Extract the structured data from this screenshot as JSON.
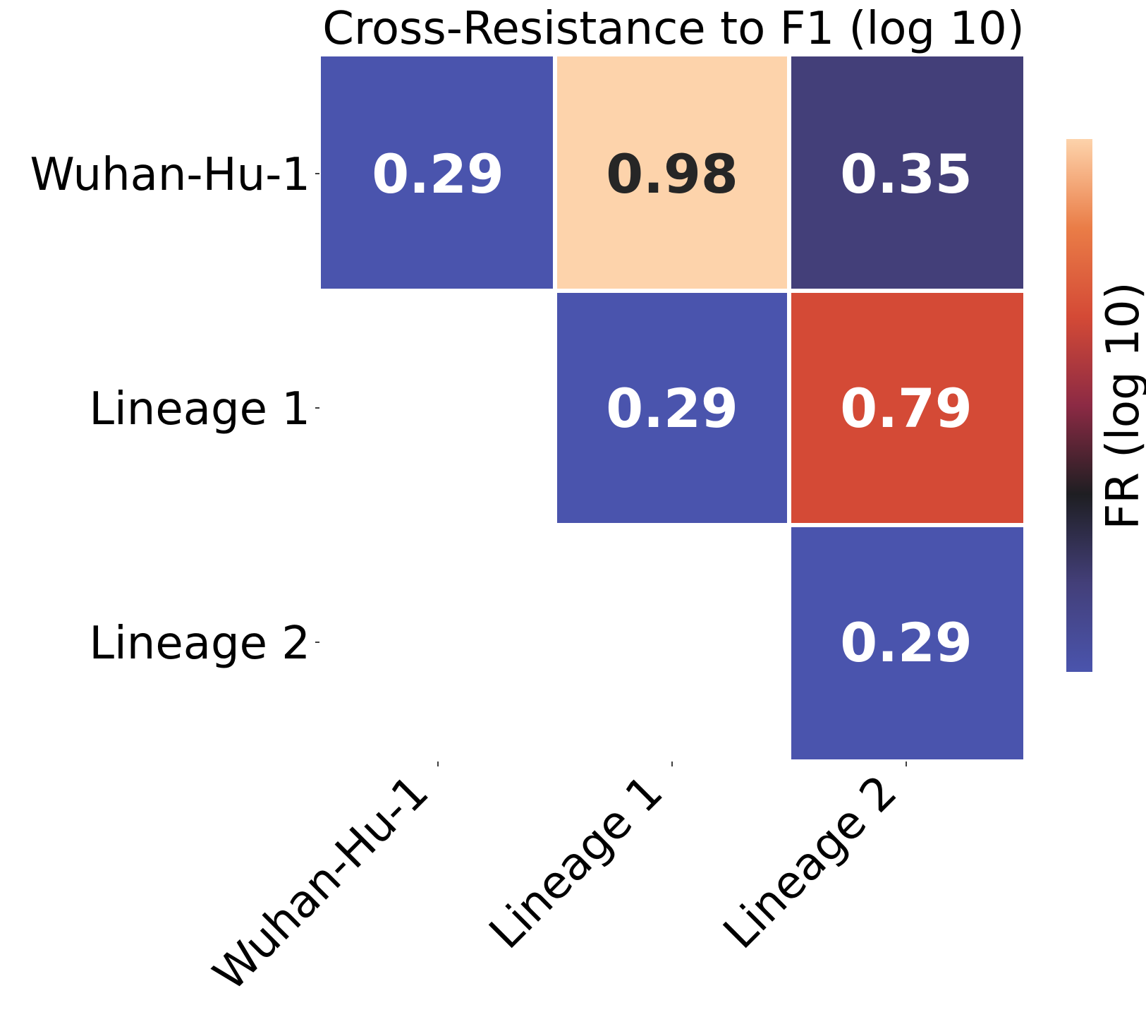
{
  "chart_data": {
    "type": "heatmap",
    "title": "Cross-Resistance to F1 (log 10)",
    "x_categories": [
      "Wuhan-Hu-1",
      "Lineage 1",
      "Lineage 2"
    ],
    "y_categories": [
      "Wuhan-Hu-1",
      "Lineage 1",
      "Lineage 2"
    ],
    "cells": [
      {
        "row": 0,
        "col": 0,
        "value": 0.29,
        "label": "0.29",
        "color": "#4a54ad",
        "text_color": "#ffffff"
      },
      {
        "row": 0,
        "col": 1,
        "value": 0.98,
        "label": "0.98",
        "color": "#fdd3ab",
        "text_color": "#262626"
      },
      {
        "row": 0,
        "col": 2,
        "value": 0.35,
        "label": "0.35",
        "color": "#433f79",
        "text_color": "#ffffff"
      },
      {
        "row": 1,
        "col": 1,
        "value": 0.29,
        "label": "0.29",
        "color": "#4a54ad",
        "text_color": "#ffffff"
      },
      {
        "row": 1,
        "col": 2,
        "value": 0.79,
        "label": "0.79",
        "color": "#d44a36",
        "text_color": "#ffffff"
      },
      {
        "row": 2,
        "col": 2,
        "value": 0.29,
        "label": "0.29",
        "color": "#4a54ad",
        "text_color": "#ffffff"
      }
    ],
    "masked": "lower-triangle",
    "colorbar": {
      "label": "FR (log 10)",
      "stops": [
        "#4a54ad",
        "#433f79",
        "#1e1e22",
        "#8c2a44",
        "#d44a36",
        "#ea7d47",
        "#fdd3ab"
      ],
      "show_ticks": false
    },
    "grid": false
  }
}
